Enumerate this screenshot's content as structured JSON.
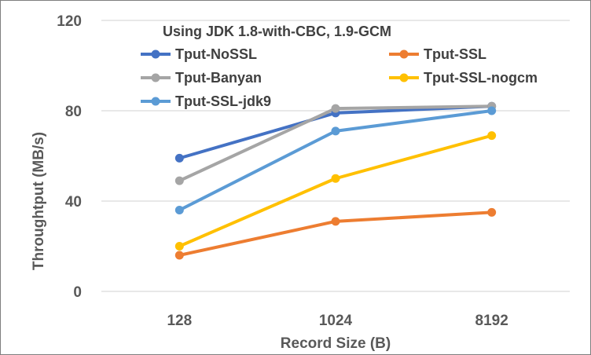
{
  "chart_data": {
    "type": "line",
    "title": "",
    "legend_title": "Using JDK 1.8-with-CBC, 1.9-GCM",
    "xlabel": "Record Size (B)",
    "ylabel": "Throughtput (MB/s)",
    "categories": [
      "128",
      "1024",
      "8192"
    ],
    "ylim": [
      0,
      120
    ],
    "yticks": [
      0,
      40,
      80,
      120
    ],
    "grid": true,
    "legend_position": "top",
    "series": [
      {
        "name": "Tput-NoSSL",
        "color": "#4472c4",
        "values": [
          59,
          79,
          82
        ]
      },
      {
        "name": "Tput-SSL",
        "color": "#ed7d31",
        "values": [
          16,
          31,
          35
        ]
      },
      {
        "name": "Tput-Banyan",
        "color": "#a5a5a5",
        "values": [
          49,
          81,
          82
        ]
      },
      {
        "name": "Tput-SSL-nogcm",
        "color": "#ffc000",
        "values": [
          20,
          50,
          69
        ]
      },
      {
        "name": "Tput-SSL-jdk9",
        "color": "#5b9bd5",
        "values": [
          36,
          71,
          80
        ]
      }
    ]
  }
}
